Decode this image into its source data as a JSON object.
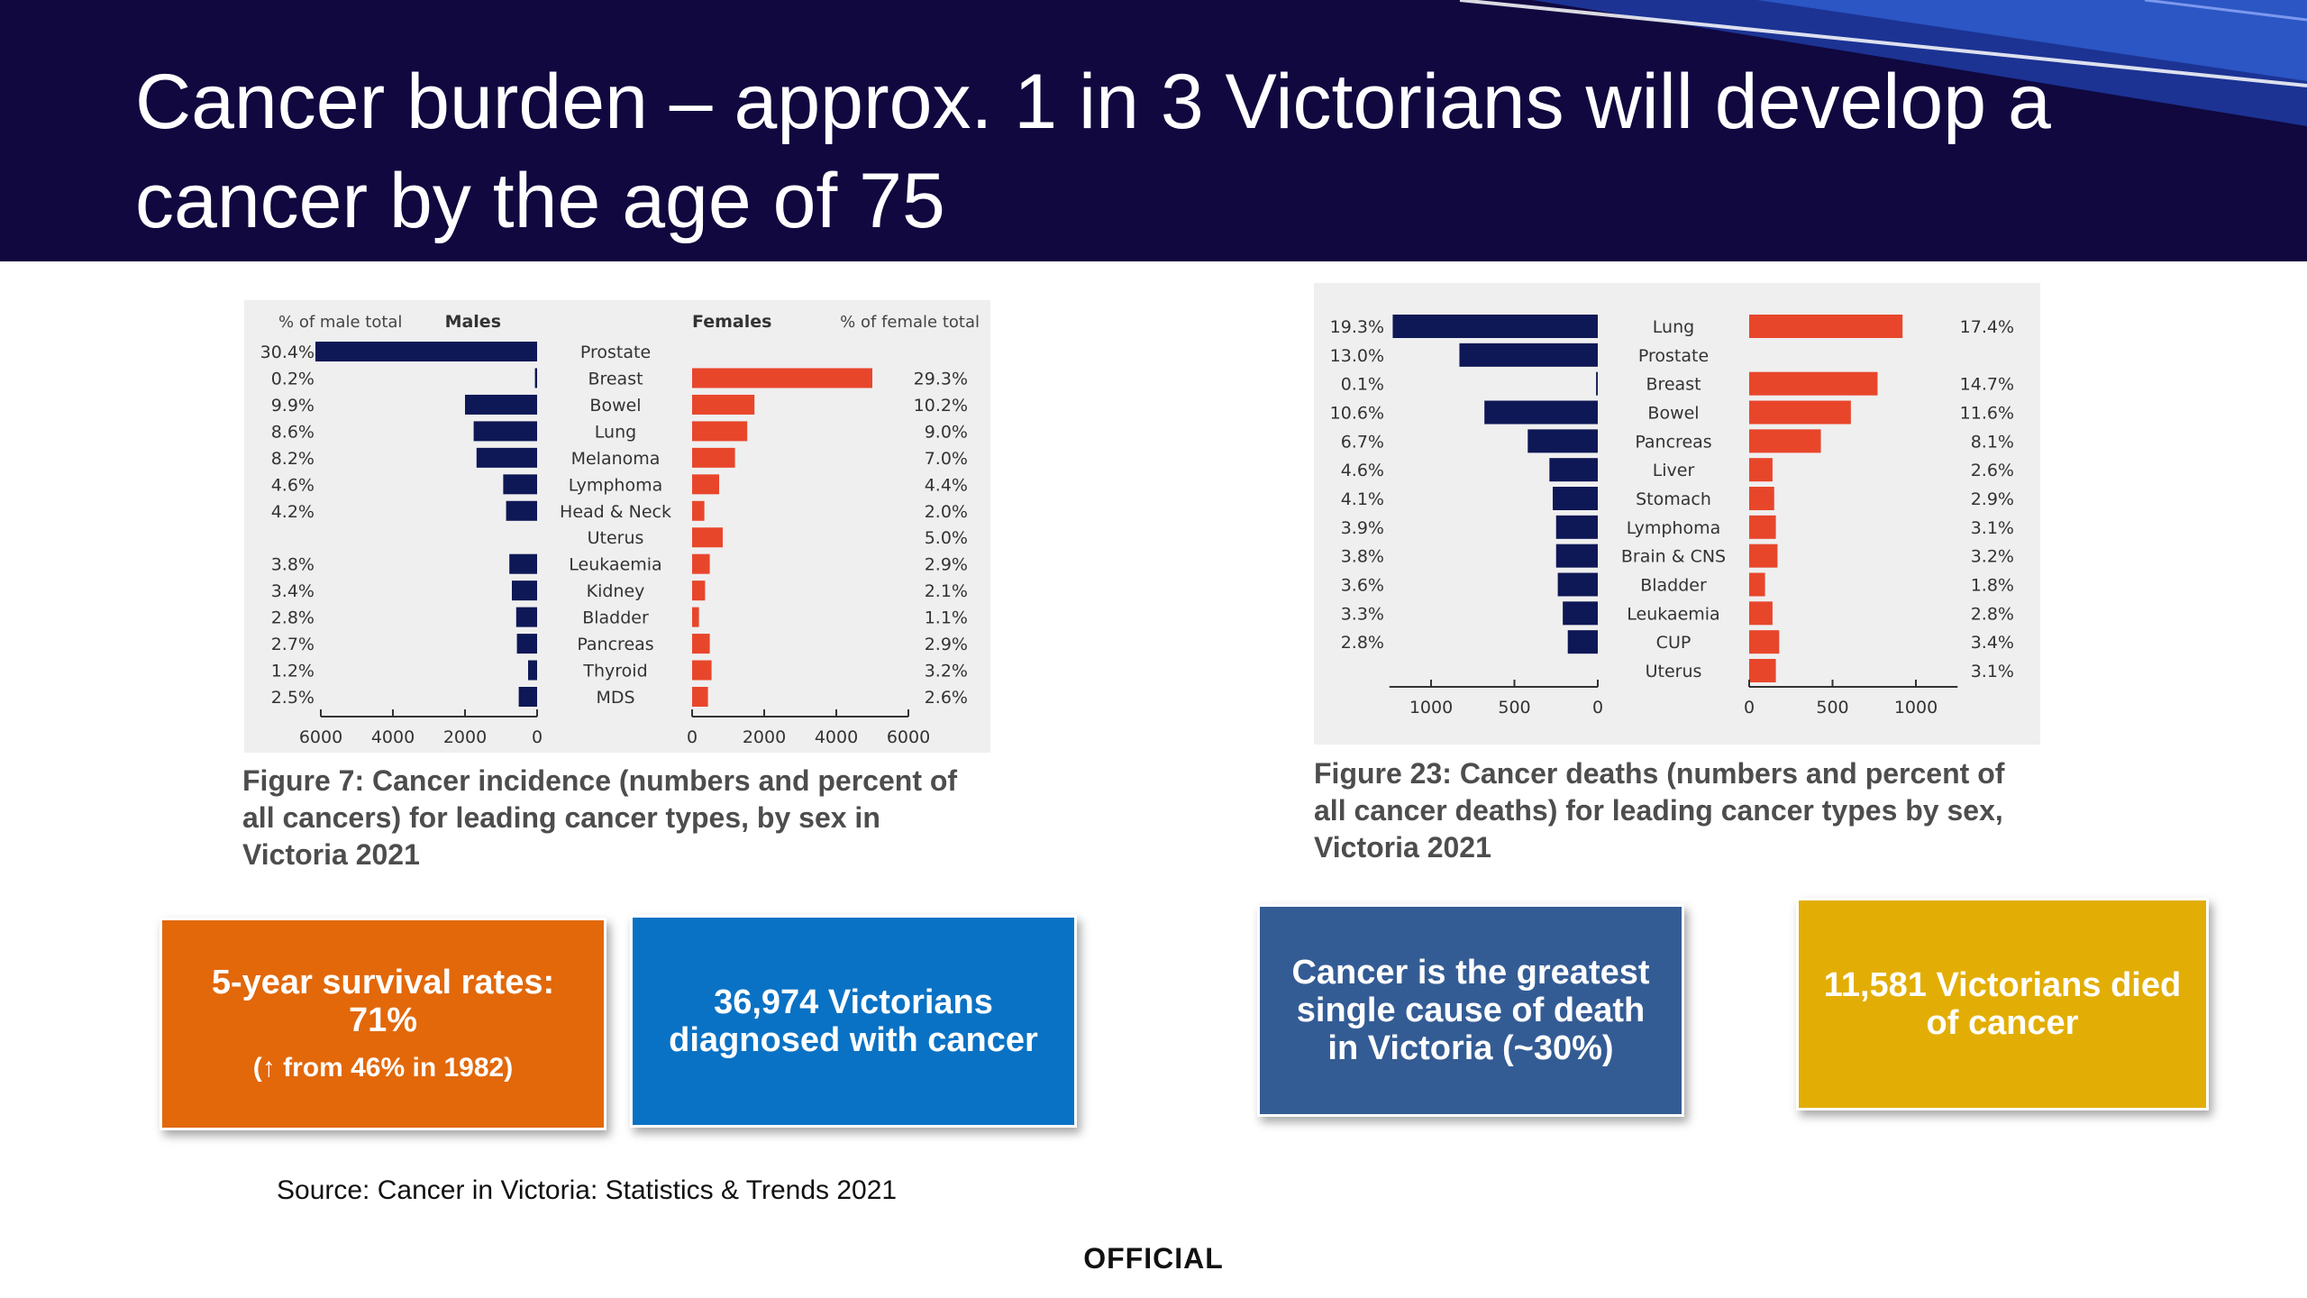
{
  "title": "Cancer burden – approx. 1 in 3 Victorians will develop a cancer by the age of 75",
  "colors": {
    "header_bg": "#10083f",
    "male": "#0e1856",
    "female": "#e8462b",
    "panel_bg": "#efefef"
  },
  "chart_data": [
    {
      "type": "bar",
      "orientation": "horizontal-butterfly",
      "caption": "Figure 7: Cancer incidence (numbers and percent of all cancers) for leading cancer types, by sex in Victoria 2021",
      "headers": {
        "left_pct": "% of male total",
        "left_series": "Males",
        "right_series": "Females",
        "right_pct": "% of female total"
      },
      "categories": [
        "Prostate",
        "Breast",
        "Bowel",
        "Lung",
        "Melanoma",
        "Lymphoma",
        "Head & Neck",
        "Uterus",
        "Leukaemia",
        "Kidney",
        "Bladder",
        "Pancreas",
        "Thyroid",
        "MDS"
      ],
      "series": [
        {
          "name": "Males",
          "values": [
            6150,
            60,
            2000,
            1760,
            1680,
            940,
            860,
            null,
            770,
            700,
            580,
            560,
            250,
            510
          ],
          "percent_labels": [
            "30.4%",
            "0.2%",
            "9.9%",
            "8.6%",
            "8.2%",
            "4.6%",
            "4.2%",
            "",
            "3.8%",
            "3.4%",
            "2.8%",
            "2.7%",
            "1.2%",
            "2.5%"
          ]
        },
        {
          "name": "Females",
          "values": [
            null,
            5000,
            1730,
            1530,
            1190,
            750,
            340,
            850,
            490,
            360,
            190,
            490,
            540,
            440
          ],
          "percent_labels": [
            "",
            "29.3%",
            "10.2%",
            "9.0%",
            "7.0%",
            "4.4%",
            "2.0%",
            "5.0%",
            "2.9%",
            "2.1%",
            "1.1%",
            "2.9%",
            "3.2%",
            "2.6%"
          ]
        }
      ],
      "xlim": [
        0,
        6000
      ],
      "ticks": [
        6000,
        4000,
        2000,
        0
      ]
    },
    {
      "type": "bar",
      "orientation": "horizontal-butterfly",
      "caption": "Figure 23: Cancer deaths (numbers and percent of all cancer deaths) for leading cancer types by sex, Victoria 2021",
      "categories": [
        "Lung",
        "Prostate",
        "Breast",
        "Bowel",
        "Pancreas",
        "Liver",
        "Stomach",
        "Lymphoma",
        "Brain & CNS",
        "Bladder",
        "Leukaemia",
        "CUP",
        "Uterus"
      ],
      "series": [
        {
          "name": "Males",
          "values": [
            1230,
            830,
            10,
            680,
            420,
            290,
            270,
            250,
            250,
            240,
            210,
            180,
            null
          ],
          "percent_labels": [
            "19.3%",
            "13.0%",
            "0.1%",
            "10.6%",
            "6.7%",
            "4.6%",
            "4.1%",
            "3.9%",
            "3.8%",
            "3.6%",
            "3.3%",
            "2.8%",
            ""
          ]
        },
        {
          "name": "Females",
          "values": [
            920,
            0,
            770,
            610,
            430,
            140,
            150,
            160,
            170,
            95,
            140,
            180,
            160
          ],
          "percent_labels": [
            "17.4%",
            "",
            "14.7%",
            "11.6%",
            "8.1%",
            "2.6%",
            "2.9%",
            "3.1%",
            "3.2%",
            "1.8%",
            "2.8%",
            "3.4%",
            "3.1%"
          ]
        }
      ],
      "xlim": [
        0,
        1250
      ],
      "ticks": [
        1000,
        500,
        0
      ]
    }
  ],
  "boxes": {
    "survival": {
      "main": "5-year survival rates: 71%",
      "sub": "(↑ from 46% in 1982)",
      "color": "#e2680a"
    },
    "diagnosed": {
      "main": "36,974 Victorians diagnosed with cancer",
      "color": "#0a72c4"
    },
    "death_cause": {
      "main": "Cancer is the greatest single cause of death in Victoria (~30%)",
      "color": "#345c94"
    },
    "died": {
      "main": "11,581 Victorians died of cancer",
      "color": "#e2ae05"
    }
  },
  "source": "Source: Cancer in Victoria: Statistics & Trends 2021",
  "classification": "OFFICIAL"
}
